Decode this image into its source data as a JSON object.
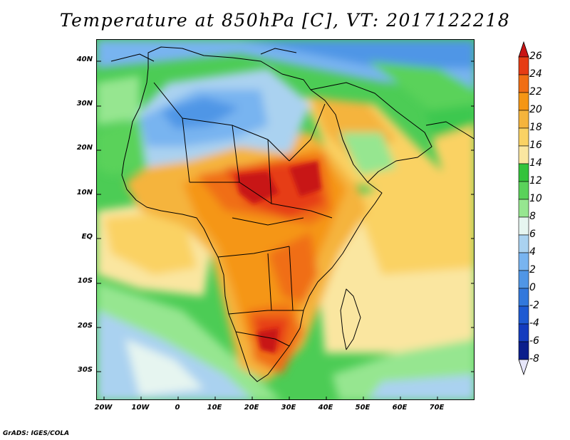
{
  "title": "Temperature at 850hPa [C], VT: 2017122218",
  "credit": "GrADS: IGES/COLA",
  "map": {
    "lat_ticks": [
      {
        "lat": 40,
        "label": "40N"
      },
      {
        "lat": 30,
        "label": "30N"
      },
      {
        "lat": 20,
        "label": "20N"
      },
      {
        "lat": 10,
        "label": "10N"
      },
      {
        "lat": 0,
        "label": "EQ"
      },
      {
        "lat": -10,
        "label": "10S"
      },
      {
        "lat": -20,
        "label": "20S"
      },
      {
        "lat": -30,
        "label": "30S"
      }
    ],
    "lon_ticks": [
      {
        "lon": -20,
        "label": "20W"
      },
      {
        "lon": -10,
        "label": "10W"
      },
      {
        "lon": 0,
        "label": "0"
      },
      {
        "lon": 10,
        "label": "10E"
      },
      {
        "lon": 20,
        "label": "20E"
      },
      {
        "lon": 30,
        "label": "30E"
      },
      {
        "lon": 40,
        "label": "40E"
      },
      {
        "lon": 50,
        "label": "50E"
      },
      {
        "lon": 60,
        "label": "60E"
      },
      {
        "lon": 70,
        "label": "70E"
      }
    ]
  },
  "colorbar": {
    "levels": [
      "26",
      "24",
      "22",
      "20",
      "18",
      "16",
      "14",
      "12",
      "10",
      "8",
      "6",
      "4",
      "2",
      "0",
      "-2",
      "-4",
      "-6",
      "-8"
    ],
    "colors": [
      "#c81414",
      "#e63c14",
      "#f06e14",
      "#f59614",
      "#f5b43c",
      "#fad264",
      "#fae6a0",
      "#33c33b",
      "#5ad25a",
      "#96e690",
      "#e6f5f0",
      "#aad2f0",
      "#78b4f0",
      "#5096e6",
      "#3278dc",
      "#1e5ad2",
      "#143cbe",
      "#0a1e8c",
      "#e6e6fa"
    ]
  },
  "colors": {
    "ocean_green": "#3cc850",
    "land_hot": "#e63c14",
    "sahara_blue": "#78b4f0",
    "tropics_yellow": "#fad264"
  }
}
